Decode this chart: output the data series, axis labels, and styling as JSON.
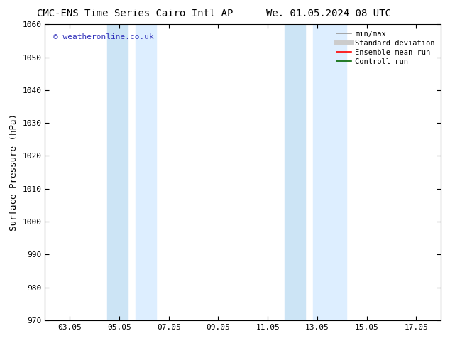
{
  "title_left": "CMC-ENS Time Series Cairo Intl AP",
  "title_right": "We. 01.05.2024 08 UTC",
  "ylabel": "Surface Pressure (hPa)",
  "ylim": [
    970,
    1060
  ],
  "yticks": [
    970,
    980,
    990,
    1000,
    1010,
    1020,
    1030,
    1040,
    1050,
    1060
  ],
  "xtick_labels": [
    "03.05",
    "05.05",
    "07.05",
    "09.05",
    "11.05",
    "13.05",
    "15.05",
    "17.05"
  ],
  "xtick_positions": [
    2,
    4,
    6,
    8,
    10,
    12,
    14,
    16
  ],
  "xlim": [
    1,
    17
  ],
  "shaded_bands": [
    {
      "xmin": 3.67,
      "xmax": 4.33,
      "color": "#cce4f5"
    },
    {
      "xmin": 4.67,
      "xmax": 5.5,
      "color": "#ddeeff"
    },
    {
      "xmin": 10.67,
      "xmax": 11.33,
      "color": "#cce4f5"
    },
    {
      "xmin": 11.67,
      "xmax": 13.0,
      "color": "#ddeeff"
    }
  ],
  "watermark_text": "© weatheronline.co.uk",
  "watermark_color": "#3333bb",
  "legend_entries": [
    {
      "label": "min/max",
      "color": "#999999",
      "lw": 1.2,
      "type": "line"
    },
    {
      "label": "Standard deviation",
      "color": "#cccccc",
      "lw": 5,
      "type": "line"
    },
    {
      "label": "Ensemble mean run",
      "color": "#ff0000",
      "lw": 1.2,
      "type": "line"
    },
    {
      "label": "Controll run",
      "color": "#006600",
      "lw": 1.2,
      "type": "line"
    }
  ],
  "bg_color": "#ffffff",
  "title_fontsize": 10,
  "tick_fontsize": 8,
  "ylabel_fontsize": 9
}
